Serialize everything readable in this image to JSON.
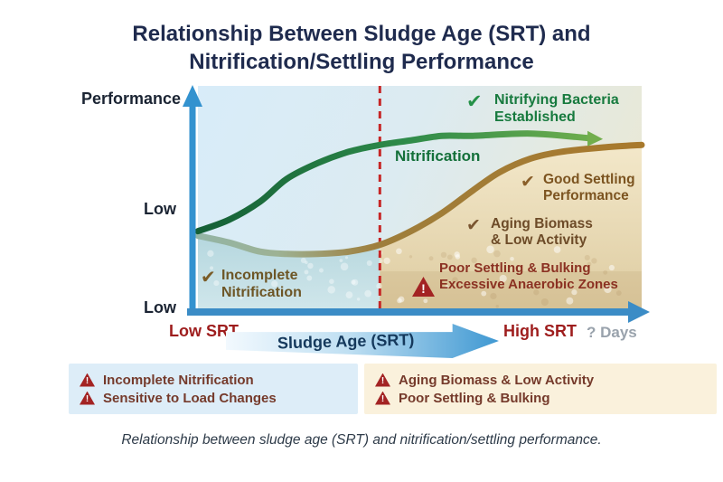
{
  "title": {
    "line1": "Relationship Between Sludge Age (SRT) and",
    "line2": "Nitrification/Settling Performance"
  },
  "caption": "Relationship between sludge age (SRT) and nitrification/settling performance.",
  "icons": {
    "check": "✔",
    "warning_exclaim": "!"
  },
  "colors": {
    "title_navy": "#1f2b4e",
    "axis_blue": "#3392cf",
    "red_label": "#9e1d1d",
    "green_text": "#177a3e",
    "brown_text": "#7c5420",
    "warning_red": "#a32323",
    "threshold_red": "#c62626",
    "left_box_bg": "#ddedf8",
    "right_box_bg": "#faf1dc"
  },
  "axes": {
    "y_label": "Performance",
    "y_tick_upper": "Low",
    "y_tick_lower": "Low",
    "x_left_label": "Low SRT",
    "x_banner": "Sludge Age (SRT)",
    "x_right_label": "High SRT",
    "x_unit_label": "? Days"
  },
  "callouts": {
    "left": {
      "items": [
        "Incomplete Nitrification",
        "Sensitive to Load Changes"
      ]
    },
    "right": {
      "items": [
        "Aging Biomass & Low Activity",
        "Poor Settling & Bulking"
      ]
    }
  },
  "chart_data": {
    "type": "line",
    "title": "Relationship Between Sludge Age (SRT) and Nitrification/Settling Performance",
    "xlabel": "Sludge Age (SRT)",
    "ylabel": "Performance",
    "x_axis": {
      "left_label": "Low SRT",
      "right_label": "High SRT",
      "unit_label": "? Days",
      "range_pct": [
        0,
        100
      ]
    },
    "y_axis": {
      "tick_labels": [
        "Low",
        "Low"
      ],
      "range_pct": [
        0,
        100
      ],
      "grid": false
    },
    "legend_position": "none",
    "series": [
      {
        "name": "Nitrification",
        "color": "#2e8b4a",
        "style": "arrow-end",
        "x": [
          0,
          7,
          14,
          20,
          27,
          34,
          41,
          48,
          55,
          62,
          75,
          88
        ],
        "y": [
          36,
          41,
          49,
          59,
          66,
          71,
          74,
          76,
          78,
          78,
          79,
          77
        ]
      },
      {
        "name": "Settling Performance",
        "color": "#a8792c",
        "color_start": "#93b5a6",
        "x": [
          0,
          7,
          14,
          20,
          27,
          34,
          41,
          48,
          55,
          62,
          68,
          75,
          82,
          92,
          100
        ],
        "y": [
          34,
          31,
          27,
          26,
          26,
          27,
          30,
          36,
          44,
          54,
          62,
          68,
          71,
          73,
          74
        ]
      }
    ],
    "threshold_line": {
      "x": 41,
      "style": "dashed",
      "color": "#c62626"
    },
    "annotations": {
      "nitrifying_bacteria": {
        "icon": "check",
        "line1": "Nitrifying Bacteria",
        "line2": "Established"
      },
      "nitrification_curve_label": {
        "text": "Nitrification"
      },
      "good_settling": {
        "icon": "check",
        "line1": "Good Settling",
        "line2": "Performance"
      },
      "aging_biomass": {
        "icon": "check",
        "line1": "Aging Biomass",
        "line2": "& Low Activity"
      },
      "poor_settling": {
        "icon": "warning",
        "line1": "Poor Settling & Bulking",
        "line2": "Excessive Anaerobic Zones"
      },
      "incomplete_nitrification": {
        "icon": "check",
        "line1": "Incomplete",
        "line2": "Nitrification"
      }
    }
  }
}
